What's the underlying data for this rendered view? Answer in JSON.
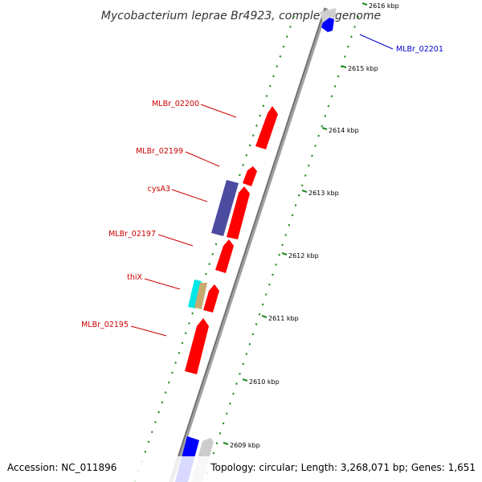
{
  "title": "Mycobacterium leprae Br4923, complete genome",
  "footer": {
    "accession": "Accession: NC_011896",
    "topology": "Topology: circular; Length: 3,268,071 bp; Genes: 1,651"
  },
  "ticks": [
    {
      "label": "2616 kbp"
    },
    {
      "label": "2615 kbp"
    },
    {
      "label": "2614 kbp"
    },
    {
      "label": "2613 kbp"
    },
    {
      "label": "2612 kbp"
    },
    {
      "label": "2611 kbp"
    },
    {
      "label": "2610 kbp"
    },
    {
      "label": "2609 kbp"
    }
  ],
  "gene_labels": [
    {
      "text": "MLBr_02201",
      "color": "#0000cc"
    },
    {
      "text": "MLBr_02200",
      "color": "#cc0000"
    },
    {
      "text": "MLBr_02199",
      "color": "#cc0000"
    },
    {
      "text": "cysA3",
      "color": "#cc0000"
    },
    {
      "text": "MLBr_02197",
      "color": "#cc0000"
    },
    {
      "text": "thiX",
      "color": "#cc0000"
    },
    {
      "text": "MLBr_02195",
      "color": "#cc0000"
    }
  ],
  "colors": {
    "backbone": "#8c8c8c",
    "gc_dots": "#1f8a1f",
    "cds_forward": "#ff0000",
    "cds_reverse": "#0000ff",
    "rna": "#4b4ba0",
    "thiX_cyan": "#00e5e5",
    "thiX_tan": "#c8aa6e",
    "gray_feature": "#cccccc"
  }
}
